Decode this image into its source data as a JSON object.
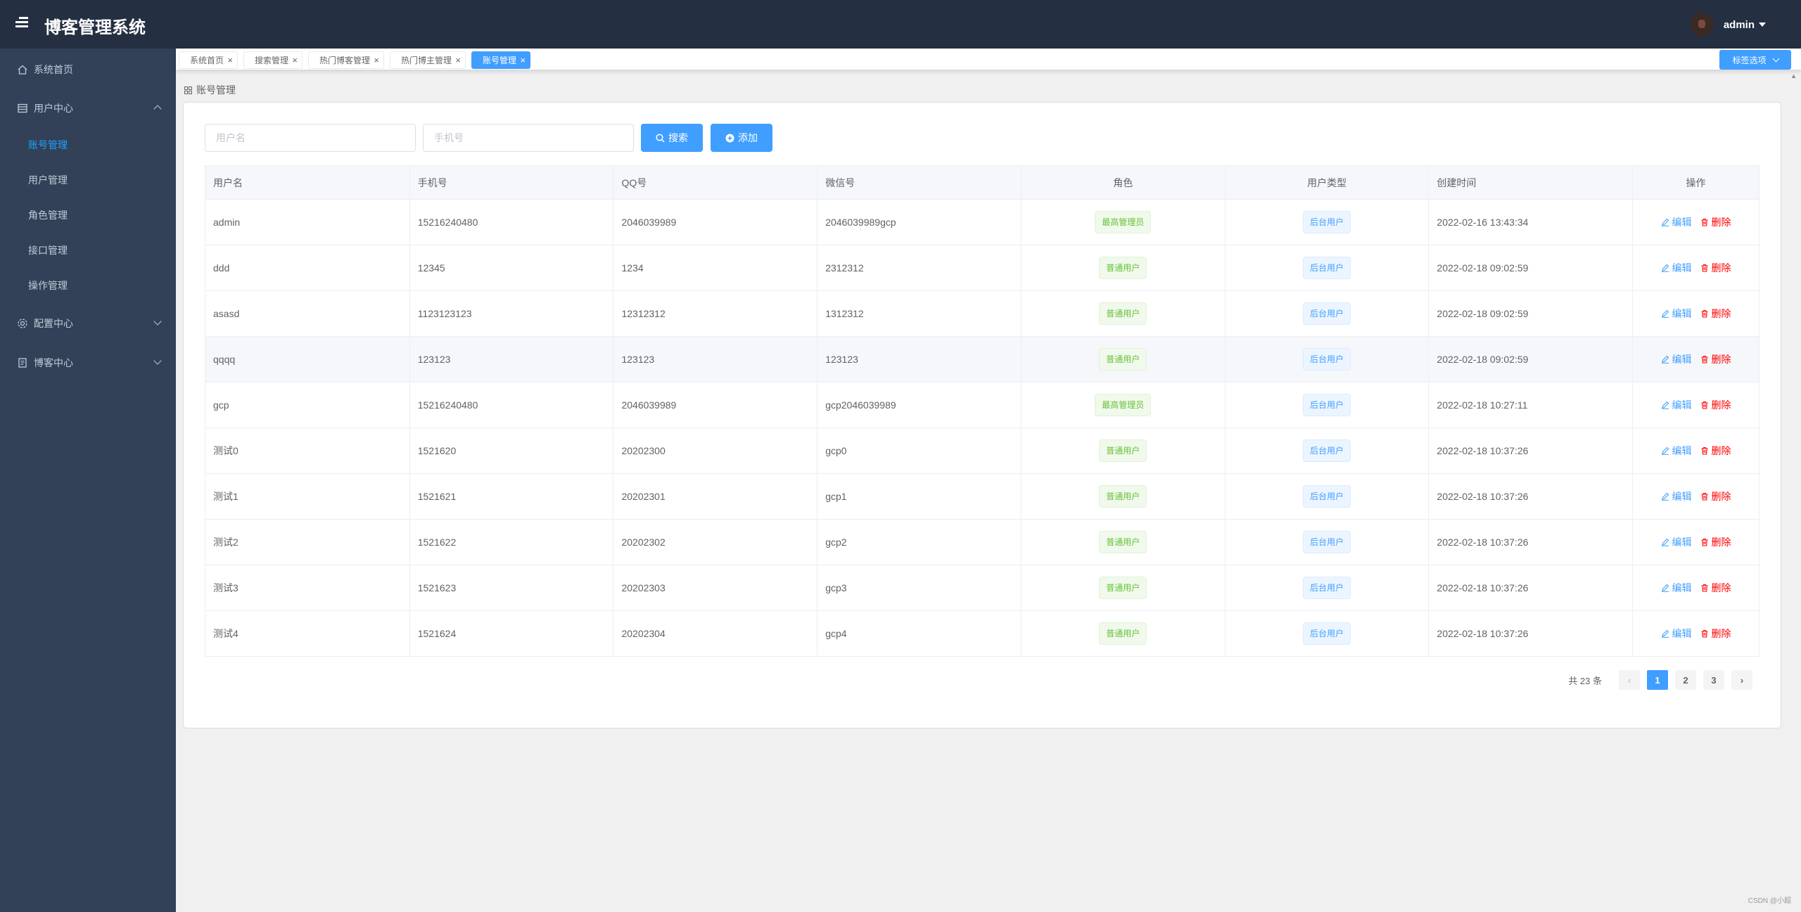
{
  "header": {
    "brand": "博客管理系统",
    "username": "admin"
  },
  "sidebar": {
    "items": [
      {
        "label": "系统首页",
        "icon": "home-icon"
      },
      {
        "label": "用户中心",
        "icon": "list-icon",
        "expanded": true,
        "children": [
          "账号管理",
          "用户管理",
          "角色管理",
          "接口管理",
          "操作管理"
        ]
      },
      {
        "label": "配置中心",
        "icon": "gear-icon"
      },
      {
        "label": "博客中心",
        "icon": "document-icon"
      }
    ],
    "active_child": "账号管理"
  },
  "tabs": {
    "items": [
      "系统首页",
      "搜索管理",
      "热门博客管理",
      "热门博主管理",
      "账号管理"
    ],
    "close_glyph": "×",
    "options_label": "标签选项"
  },
  "breadcrumb": {
    "label": "账号管理"
  },
  "search": {
    "username_placeholder": "用户名",
    "phone_placeholder": "手机号",
    "search_label": "搜索",
    "add_label": "添加"
  },
  "table": {
    "columns": [
      "用户名",
      "手机号",
      "QQ号",
      "微信号",
      "角色",
      "用户类型",
      "创建时间",
      "操作"
    ],
    "rows": [
      [
        "admin",
        "15216240480",
        "2046039989",
        "2046039989gcp",
        "最高管理员",
        "后台用户",
        "2022-02-16 13:43:34"
      ],
      [
        "ddd",
        "12345",
        "1234",
        "2312312",
        "普通用户",
        "后台用户",
        "2022-02-18 09:02:59"
      ],
      [
        "asasd",
        "1123123123",
        "12312312",
        "1312312",
        "普通用户",
        "后台用户",
        "2022-02-18 09:02:59"
      ],
      [
        "qqqq",
        "123123",
        "123123",
        "123123",
        "普通用户",
        "后台用户",
        "2022-02-18 09:02:59"
      ],
      [
        "gcp",
        "15216240480",
        "2046039989",
        "gcp2046039989",
        "最高管理员",
        "后台用户",
        "2022-02-18 10:27:11"
      ],
      [
        "测试0",
        "1521620",
        "20202300",
        "gcp0",
        "普通用户",
        "后台用户",
        "2022-02-18 10:37:26"
      ],
      [
        "测试1",
        "1521621",
        "20202301",
        "gcp1",
        "普通用户",
        "后台用户",
        "2022-02-18 10:37:26"
      ],
      [
        "测试2",
        "1521622",
        "20202302",
        "gcp2",
        "普通用户",
        "后台用户",
        "2022-02-18 10:37:26"
      ],
      [
        "测试3",
        "1521623",
        "20202303",
        "gcp3",
        "普通用户",
        "后台用户",
        "2022-02-18 10:37:26"
      ],
      [
        "测试4",
        "1521624",
        "20202304",
        "gcp4",
        "普通用户",
        "后台用户",
        "2022-02-18 10:37:26"
      ]
    ],
    "edit_label": "编辑",
    "delete_label": "删除"
  },
  "pagination": {
    "total_text": "共 23 条",
    "pages": [
      "1",
      "2",
      "3"
    ],
    "current": "1",
    "prev_glyph": "‹",
    "next_glyph": "›"
  },
  "colors": {
    "header_bg": "#242f42",
    "sidebar_bg": "#324157",
    "accent": "#409eff",
    "danger": "#ff0000",
    "success": "#67c23a"
  },
  "footer": {
    "watermark": "CSDN @小超"
  }
}
